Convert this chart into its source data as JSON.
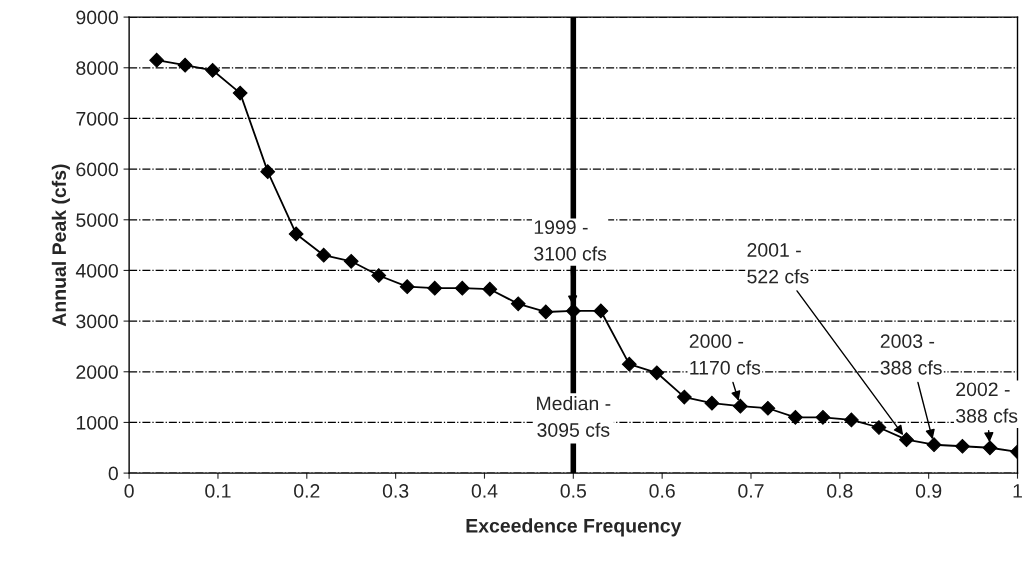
{
  "chart_data": {
    "type": "line",
    "xlabel": "Exceedence Frequency",
    "ylabel": "Annual Peak (cfs)",
    "x": [
      0.031,
      0.063,
      0.094,
      0.125,
      0.156,
      0.188,
      0.219,
      0.25,
      0.281,
      0.313,
      0.344,
      0.375,
      0.406,
      0.438,
      0.469,
      0.5,
      0.531,
      0.563,
      0.594,
      0.625,
      0.656,
      0.688,
      0.719,
      0.75,
      0.781,
      0.813,
      0.844,
      0.875,
      0.906,
      0.938,
      0.969,
      1.0
    ],
    "series": [
      {
        "color": "#000000",
        "values": [
          8150,
          8050,
          7950,
          7500,
          5950,
          4720,
          4300,
          4180,
          3900,
          3680,
          3650,
          3650,
          3630,
          3340,
          3180,
          3200,
          3200,
          2150,
          1980,
          1500,
          1380,
          1320,
          1280,
          1100,
          1100,
          1050,
          900,
          660,
          560,
          530,
          500,
          420
        ]
      }
    ],
    "xlim": [
      0,
      1
    ],
    "ylim": [
      0,
      9000
    ],
    "xticks": [
      0,
      0.1,
      0.2,
      0.3,
      0.4,
      0.5,
      0.6,
      0.7,
      0.8,
      0.9,
      1
    ],
    "yticks": [
      0,
      1000,
      2000,
      3000,
      4000,
      5000,
      6000,
      7000,
      8000,
      9000
    ],
    "grid": "y",
    "marker": "diamond",
    "line_style": "solid",
    "legend": false,
    "ref_lines": [
      {
        "axis": "x",
        "value": 0.5,
        "label": "Median -\n3095 cfs",
        "color": "#000000"
      }
    ],
    "annotations": [
      {
        "text": "1999 -\n3100 cfs",
        "x": 0.5,
        "y": 3200
      },
      {
        "text": "2000 -\n1170 cfs",
        "x": 0.688,
        "y": 1320
      },
      {
        "text": "2001 -\n522 cfs",
        "x": 0.875,
        "y": 660
      },
      {
        "text": "2003 -\n388 cfs",
        "x": 0.906,
        "y": 560
      },
      {
        "text": "2002 -\n388 cfs",
        "x": 0.969,
        "y": 500
      }
    ]
  }
}
